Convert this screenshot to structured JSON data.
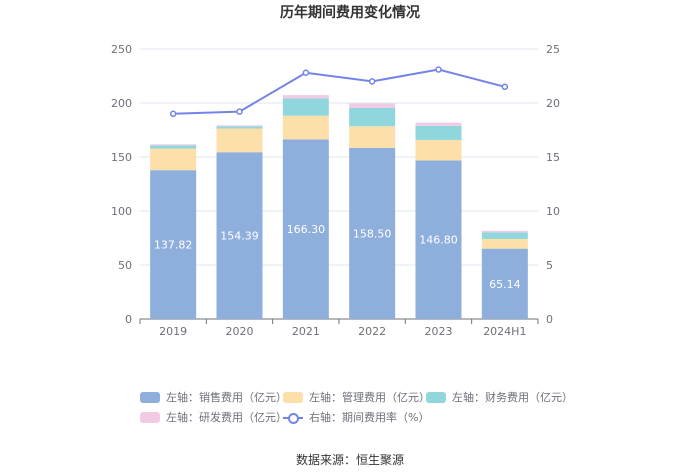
{
  "title": "历年期间费用变化情况",
  "source": "数据来源：恒生聚源",
  "chart_data": {
    "type": "bar",
    "stacked": true,
    "categories": [
      "2019",
      "2020",
      "2021",
      "2022",
      "2023",
      "2024H1"
    ],
    "left_axis": {
      "ylim": [
        0,
        250
      ],
      "ticks": [
        "0",
        "50",
        "100",
        "150",
        "200",
        "250"
      ]
    },
    "right_axis": {
      "ylim": [
        0,
        25
      ],
      "ticks": [
        "0",
        "5",
        "10",
        "15",
        "20",
        "25"
      ]
    },
    "series": [
      {
        "name": "左轴：销售费用（亿元）",
        "axis": "left",
        "color": "#8eaedc",
        "values": [
          137.82,
          154.39,
          166.3,
          158.5,
          146.8,
          65.14
        ],
        "labels": [
          "137.82",
          "154.39",
          "166.30",
          "158.50",
          "146.80",
          "65.14"
        ]
      },
      {
        "name": "左轴：管理费用（亿元）",
        "axis": "left",
        "color": "#fddfa9",
        "values": [
          20,
          22,
          22,
          20,
          19,
          9
        ]
      },
      {
        "name": "左轴：财务费用（亿元）",
        "axis": "left",
        "color": "#8fd7dc",
        "values": [
          3,
          2,
          16,
          17,
          13,
          6
        ]
      },
      {
        "name": "左轴：研发费用（亿元）",
        "axis": "left",
        "color": "#f1cbe6",
        "values": [
          1,
          1,
          3,
          4,
          3,
          1.5
        ]
      },
      {
        "name": "右轴：期间费用率（%）",
        "axis": "right",
        "type": "line",
        "color": "#7483e8",
        "values": [
          19.0,
          19.2,
          22.8,
          22.0,
          23.1,
          21.5
        ]
      }
    ],
    "grid": true,
    "legend_position": "bottom"
  }
}
